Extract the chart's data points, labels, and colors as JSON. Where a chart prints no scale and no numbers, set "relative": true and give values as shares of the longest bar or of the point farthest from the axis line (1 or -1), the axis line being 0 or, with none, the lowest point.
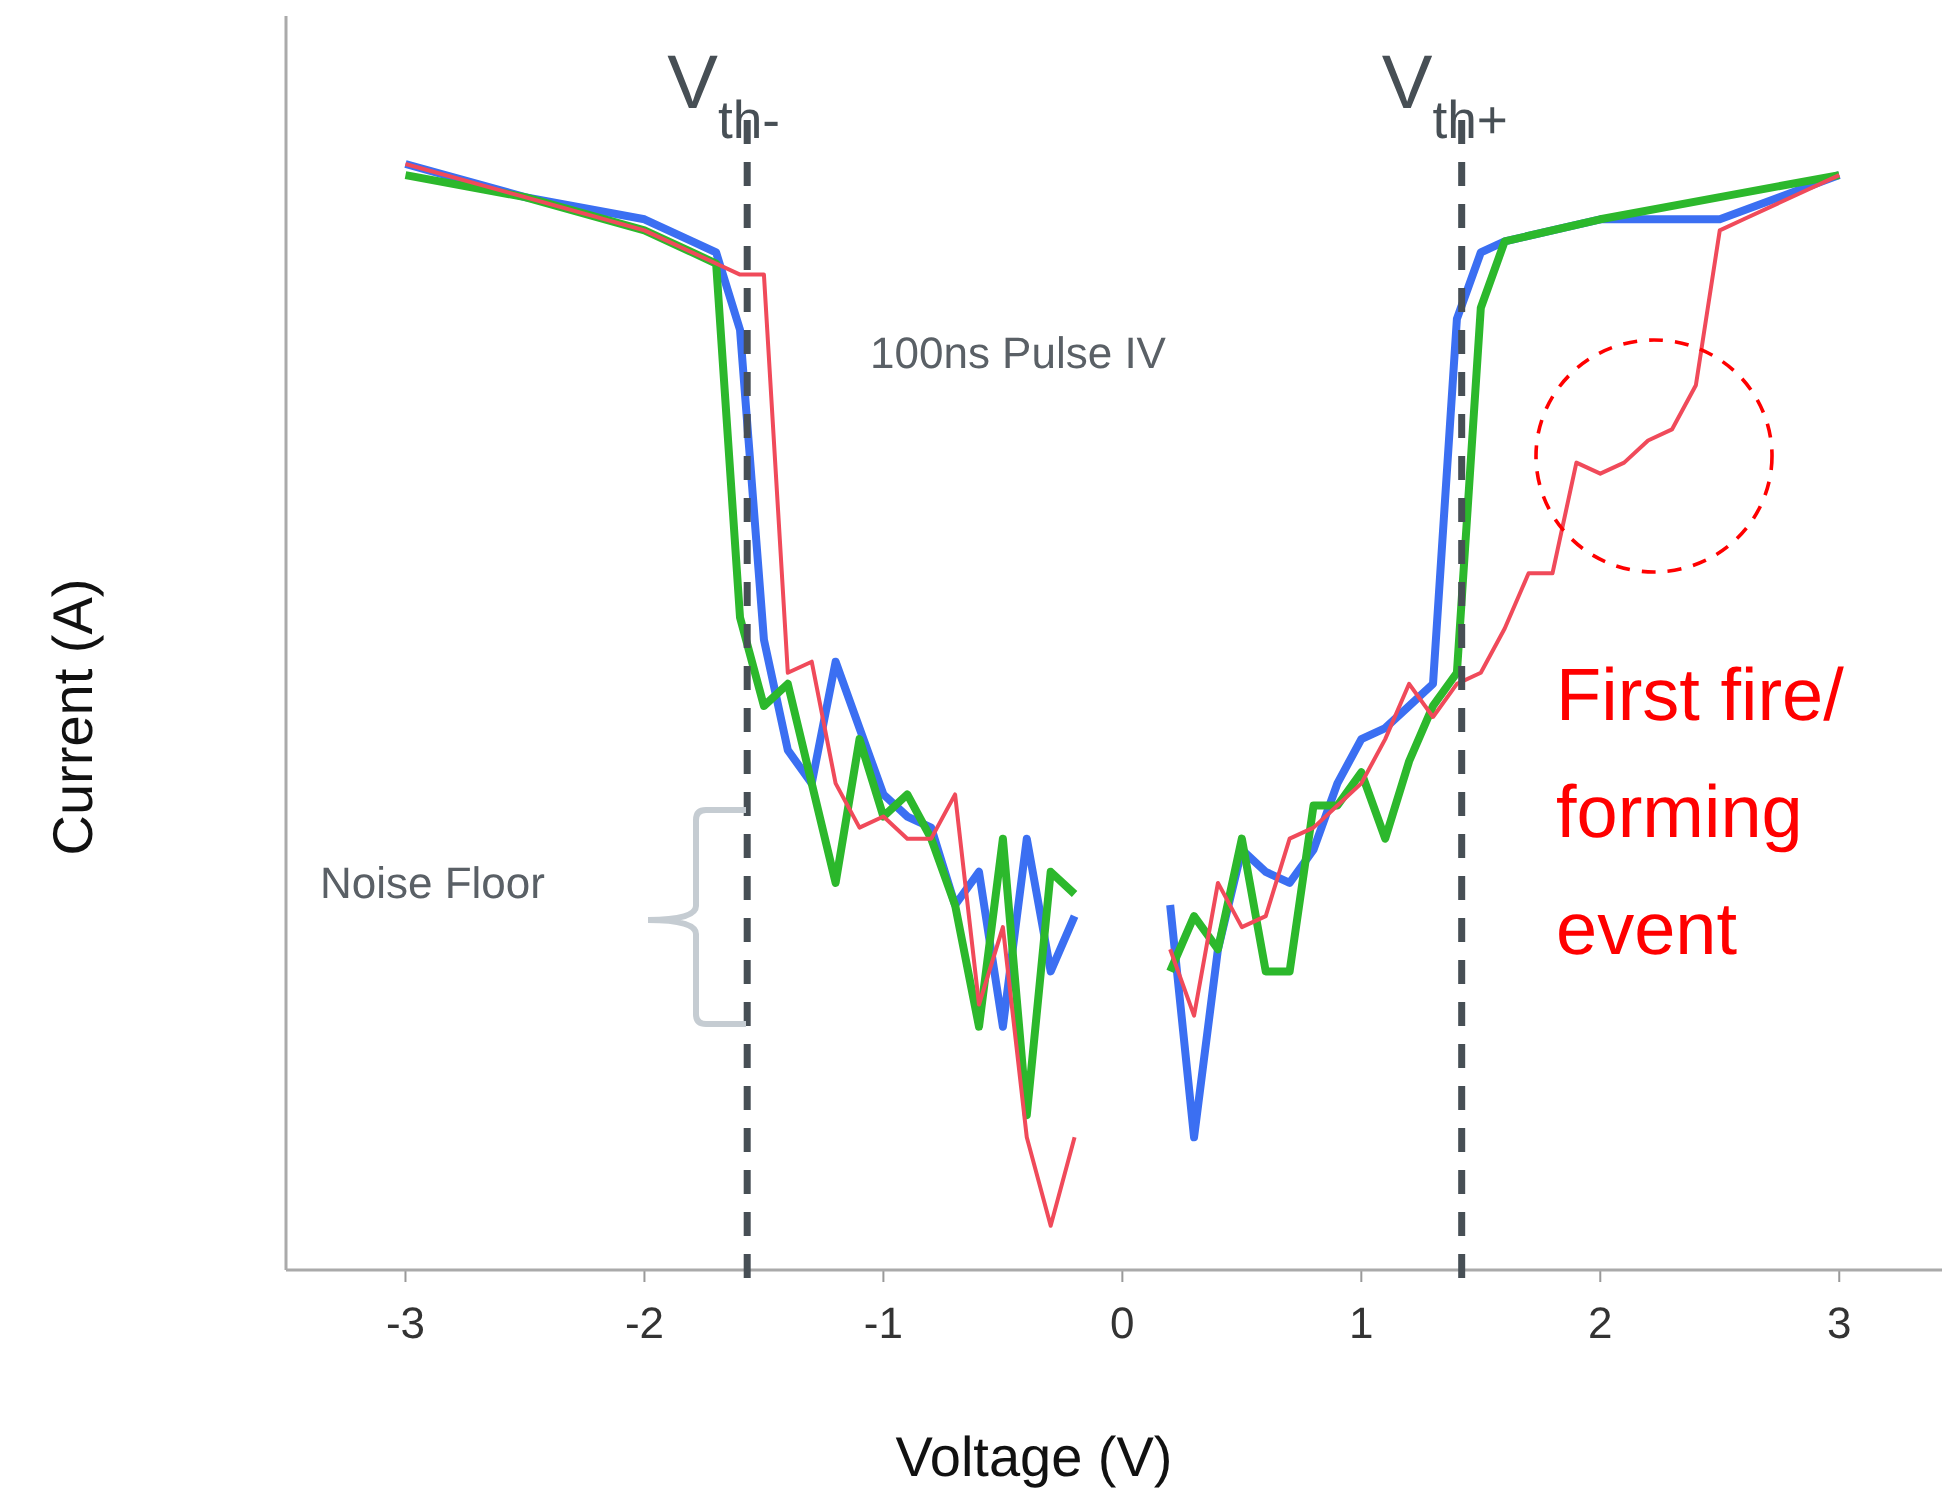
{
  "chart_data": {
    "type": "line",
    "relative": true,
    "xlabel": "Voltage (V)",
    "ylabel": "Current (A)",
    "xlim": [
      -3.5,
      3.43
    ],
    "xticks": [
      -3,
      -2,
      -1,
      0,
      1,
      2,
      3
    ],
    "series": [
      {
        "color": "#f04a5a",
        "x": [
          -3,
          -2.5,
          -2,
          -1.8,
          -1.7,
          -1.6,
          -1.5,
          -1.4,
          -1.3,
          -1.2,
          -1.1,
          -1.0,
          -0.9,
          -0.8,
          -0.7,
          -0.6,
          -0.5,
          -0.4,
          -0.3,
          -0.2,
          0,
          0.2,
          0.3,
          0.4,
          0.5,
          0.6,
          0.7,
          0.8,
          0.9,
          1.0,
          1.1,
          1.2,
          1.3,
          1.4,
          1.5,
          1.6,
          1.7,
          1.8,
          1.9,
          2.0,
          2.1,
          2.2,
          2.3,
          2.4,
          2.5,
          2.6,
          3.0
        ],
        "values": [
          1.0,
          0.97,
          0.94,
          0.92,
          0.91,
          0.9,
          0.9,
          0.54,
          0.55,
          0.44,
          0.4,
          0.41,
          0.39,
          0.39,
          0.43,
          0.24,
          0.31,
          0.12,
          0.04,
          0.12,
          null,
          0.29,
          0.23,
          0.35,
          0.31,
          0.32,
          0.39,
          0.4,
          0.42,
          0.44,
          0.48,
          0.53,
          0.5,
          0.53,
          0.54,
          0.58,
          0.63,
          0.63,
          0.73,
          0.72,
          0.73,
          0.75,
          0.76,
          0.8,
          0.94,
          0.95,
          0.99
        ]
      },
      {
        "color": "#2cb82c",
        "x": [
          -3,
          -2.5,
          -2,
          -1.8,
          -1.7,
          -1.6,
          -1.5,
          -1.4,
          -1.2,
          -1.1,
          -1.0,
          -0.9,
          -0.8,
          -0.7,
          -0.6,
          -0.5,
          -0.4,
          -0.3,
          -0.2,
          0,
          0.2,
          0.3,
          0.4,
          0.5,
          0.6,
          0.7,
          0.8,
          0.9,
          1.0,
          1.1,
          1.2,
          1.3,
          1.4,
          1.5,
          1.6,
          2.0,
          2.5,
          3.0
        ],
        "values": [
          0.99,
          0.97,
          0.94,
          0.92,
          0.91,
          0.59,
          0.51,
          0.53,
          0.35,
          0.48,
          0.41,
          0.43,
          0.39,
          0.33,
          0.22,
          0.39,
          0.14,
          0.36,
          0.34,
          null,
          0.27,
          0.32,
          0.29,
          0.39,
          0.27,
          0.27,
          0.42,
          0.42,
          0.45,
          0.39,
          0.46,
          0.51,
          0.54,
          0.87,
          0.93,
          0.95,
          0.97,
          0.99
        ]
      },
      {
        "color": "#3b6ff2",
        "x": [
          -3,
          -2.5,
          -2,
          -1.8,
          -1.7,
          -1.6,
          -1.5,
          -1.4,
          -1.3,
          -1.2,
          -1.1,
          -1.0,
          -0.9,
          -0.8,
          -0.7,
          -0.6,
          -0.5,
          -0.4,
          -0.3,
          -0.2,
          0,
          0.2,
          0.3,
          0.4,
          0.5,
          0.6,
          0.7,
          0.8,
          0.9,
          1.0,
          1.1,
          1.2,
          1.3,
          1.4,
          1.5,
          1.6,
          2.0,
          2.5,
          3.0
        ],
        "values": [
          1.0,
          0.97,
          0.95,
          0.93,
          0.92,
          0.85,
          0.57,
          0.47,
          0.44,
          0.55,
          0.49,
          0.43,
          0.41,
          0.4,
          0.33,
          0.36,
          0.22,
          0.39,
          0.27,
          0.32,
          null,
          0.33,
          0.12,
          0.29,
          0.38,
          0.36,
          0.35,
          0.38,
          0.44,
          0.48,
          0.49,
          0.51,
          0.53,
          0.86,
          0.92,
          0.93,
          0.95,
          0.95,
          0.99
        ]
      }
    ],
    "ref_lines": [
      {
        "axis": "x",
        "value": -1.57,
        "label": "V$_{th-}$",
        "color": "#474f55",
        "line_style": "dashed"
      },
      {
        "axis": "x",
        "value": 1.42,
        "label": "V$_{th+}$",
        "color": "#474f55",
        "line_style": "dashed"
      }
    ],
    "annotations": [
      "100ns Pulse IV",
      "Noise Floor",
      "First fire/\nforming\nevent"
    ]
  }
}
